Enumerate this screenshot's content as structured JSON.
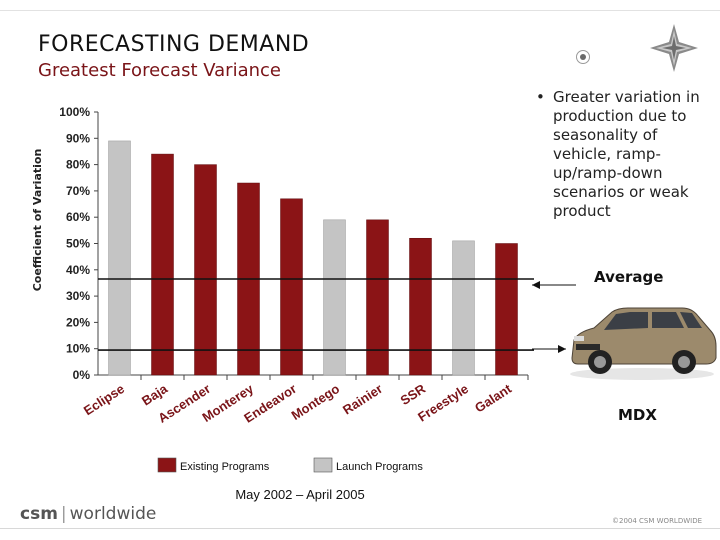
{
  "header": {
    "title": "FORECASTING DEMAND",
    "subtitle": "Greatest Forecast Variance"
  },
  "bullet": {
    "text": "Greater variation in production due to seasonality of vehicle, ramp-up/ramp-down scenarios or weak product"
  },
  "annotations": {
    "average_label": "Average",
    "vehicle_label": "MDX"
  },
  "footer": {
    "logo_left": "csm",
    "logo_right": "worldwide",
    "copyright": "©2004 CSM WORLDWIDE"
  },
  "colors": {
    "existing": "#8b1416",
    "launch": "#c4c4c4",
    "title_accent": "#7a1418"
  },
  "icons": [
    "target-icon",
    "star-logo-icon",
    "car-image"
  ],
  "chart_data": {
    "type": "bar",
    "ylabel": "Coefficient of Variation",
    "xlabel": "May 2002 – April 2005",
    "ylim": [
      0,
      100
    ],
    "yticks": [
      "0%",
      "10%",
      "20%",
      "30%",
      "40%",
      "50%",
      "60%",
      "70%",
      "80%",
      "90%",
      "100%"
    ],
    "categories": [
      "Eclipse",
      "Baja",
      "Ascender",
      "Monterey",
      "Endeavor",
      "Montego",
      "Rainier",
      "SSR",
      "Freestyle",
      "Galant"
    ],
    "values": [
      89,
      84,
      80,
      73,
      67,
      59,
      59,
      52,
      51,
      50
    ],
    "groups": [
      "launch",
      "existing",
      "existing",
      "existing",
      "existing",
      "launch",
      "existing",
      "existing",
      "launch",
      "existing"
    ],
    "legend": [
      {
        "name": "Existing Programs",
        "group": "existing"
      },
      {
        "name": "Launch Programs",
        "group": "launch"
      }
    ],
    "reference_lines": [
      {
        "label": "Average",
        "value": 36.5
      },
      {
        "label": "MDX",
        "value": 9.5
      }
    ],
    "grid": false,
    "legend_position": "bottom"
  }
}
